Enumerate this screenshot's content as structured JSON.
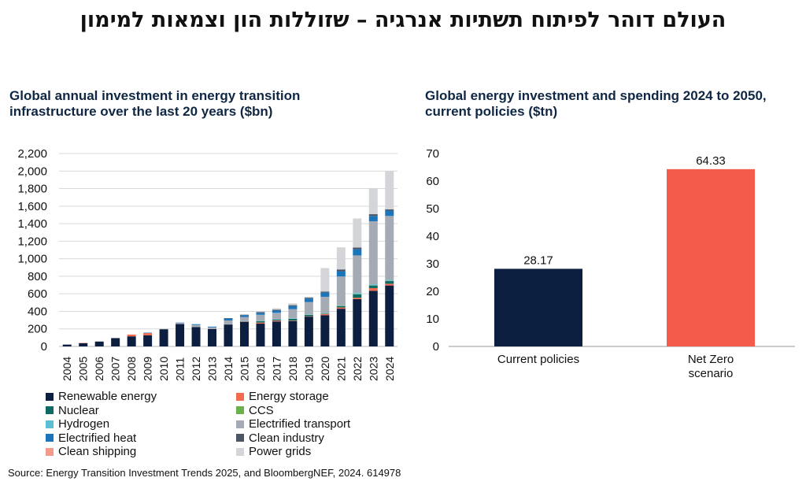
{
  "title": "העולם דוהר לפיתוח תשתיות אנרגיה – שזוללות הון וצמאות למימון",
  "source": "Source: Energy Transition Investment Trends 2025, and BloombergNEF, 2024. 614978",
  "chart_data": [
    {
      "type": "bar",
      "stacked": true,
      "title": "Global annual investment in energy transition infrastructure over the last 20 years ($bn)",
      "ylim": [
        0,
        2200
      ],
      "yticks": [
        0,
        200,
        400,
        600,
        800,
        1000,
        1200,
        1400,
        1600,
        1800,
        2000,
        2200
      ],
      "ytick_labels": [
        "0",
        "200",
        "400",
        "600",
        "800",
        "1,000",
        "1,200",
        "1,400",
        "1,600",
        "1,800",
        "2,000",
        "2,200"
      ],
      "grid": true,
      "legend_position": "bottom",
      "categories": [
        "2004",
        "2005",
        "2006",
        "2007",
        "2008",
        "2009",
        "2010",
        "2011",
        "2012",
        "2013",
        "2014",
        "2015",
        "2016",
        "2017",
        "2018",
        "2019",
        "2020",
        "2021",
        "2022",
        "2023",
        "2024"
      ],
      "series": [
        {
          "name": "Renewable energy",
          "color": "#0c1f40",
          "values": [
            21,
            36,
            56,
            95,
            115,
            127,
            196,
            255,
            220,
            198,
            250,
            280,
            260,
            285,
            290,
            340,
            355,
            430,
            540,
            635,
            695
          ]
        },
        {
          "name": "Energy storage",
          "color": "#f26b4d",
          "values": [
            0,
            4,
            0,
            0,
            20,
            25,
            0,
            0,
            0,
            0,
            3,
            4,
            12,
            10,
            5,
            5,
            15,
            15,
            15,
            30,
            20
          ]
        },
        {
          "name": "Nuclear",
          "color": "#0e6b63",
          "values": [
            0,
            0,
            0,
            0,
            0,
            0,
            0,
            0,
            0,
            0,
            0,
            3,
            15,
            10,
            20,
            15,
            5,
            15,
            40,
            30,
            30
          ]
        },
        {
          "name": "CCS",
          "color": "#6ab04c",
          "values": [
            0,
            0,
            0,
            0,
            0,
            0,
            0,
            0,
            0,
            0,
            0,
            0,
            1,
            1,
            1,
            1,
            1,
            3,
            3,
            3,
            3
          ]
        },
        {
          "name": "Hydrogen",
          "color": "#5bc0d6",
          "values": [
            0,
            0,
            0,
            0,
            0,
            0,
            0,
            0,
            0,
            0,
            3,
            3,
            3,
            3,
            5,
            5,
            5,
            5,
            10,
            10,
            10
          ]
        },
        {
          "name": "Electrified transport",
          "color": "#a4abb4",
          "values": [
            0,
            0,
            0,
            0,
            0,
            0,
            4,
            12,
            25,
            20,
            40,
            45,
            70,
            75,
            105,
            140,
            185,
            330,
            430,
            720,
            730
          ]
        },
        {
          "name": "Electrified heat",
          "color": "#1b75bb",
          "values": [
            0,
            0,
            0,
            0,
            0,
            5,
            0,
            5,
            9,
            8,
            22,
            22,
            22,
            25,
            35,
            40,
            50,
            60,
            70,
            60,
            60
          ]
        },
        {
          "name": "Clean industry",
          "color": "#4a5565",
          "values": [
            0,
            0,
            0,
            0,
            0,
            0,
            0,
            0,
            0,
            0,
            5,
            5,
            10,
            10,
            10,
            10,
            10,
            20,
            20,
            20,
            15
          ]
        },
        {
          "name": "Clean shipping",
          "color": "#f59a8a",
          "values": [
            0,
            0,
            0,
            0,
            0,
            0,
            0,
            0,
            0,
            0,
            0,
            0,
            0,
            0,
            0,
            0,
            0,
            0,
            0,
            0,
            0
          ]
        },
        {
          "name": "Power grids",
          "color": "#d3d5d8",
          "values": [
            0,
            0,
            4,
            0,
            0,
            0,
            0,
            0,
            0,
            0,
            0,
            0,
            12,
            16,
            21,
            9,
            268,
            252,
            331,
            298,
            439
          ]
        }
      ]
    },
    {
      "type": "bar",
      "title": "Global energy investment and spending 2024 to 2050, current policies ($tn)",
      "ylim": [
        0,
        70
      ],
      "yticks": [
        0,
        10,
        20,
        30,
        40,
        50,
        60,
        70
      ],
      "grid": false,
      "categories": [
        "Current policies",
        "Net Zero scenario"
      ],
      "category_lines": [
        [
          "Current policies"
        ],
        [
          "Net Zero",
          "scenario"
        ]
      ],
      "values": [
        28.17,
        64.33
      ],
      "data_labels": [
        "28.17",
        "64.33"
      ],
      "colors": [
        "#0c1f40",
        "#f45b4a"
      ]
    }
  ]
}
